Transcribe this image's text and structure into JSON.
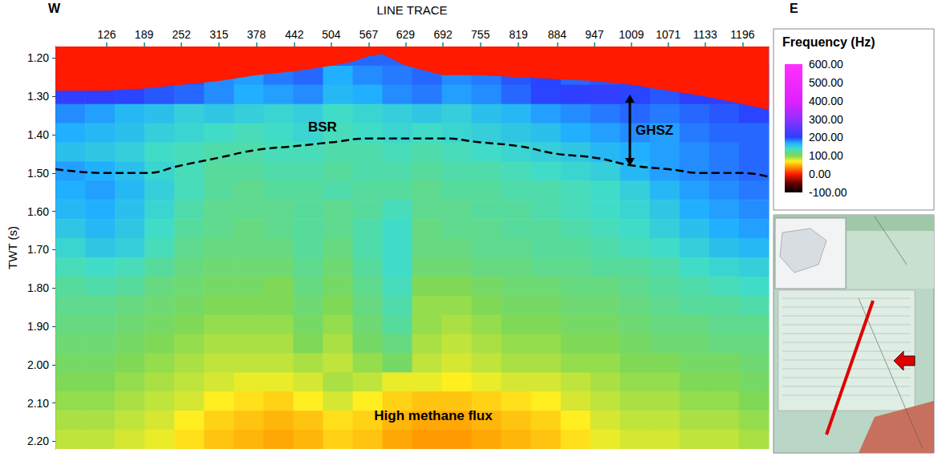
{
  "chart_data": {
    "type": "heatmap",
    "x_label": "LINE TRACE",
    "y_label": "TWT (s)",
    "direction": [
      "W",
      "E"
    ],
    "grid": false,
    "xlim": [
      40,
      1240
    ],
    "xticks": [
      126,
      189,
      252,
      315,
      378,
      442,
      504,
      567,
      629,
      692,
      755,
      819,
      884,
      947,
      1009,
      1071,
      1133,
      1196
    ],
    "ylim": [
      1.17,
      2.22
    ],
    "yticks": [
      {
        "value": 1.2,
        "label": "1.20"
      },
      {
        "value": 1.3,
        "label": "1.30"
      },
      {
        "value": 1.4,
        "label": "1.40"
      },
      {
        "value": 1.5,
        "label": "1.50"
      },
      {
        "value": 1.6,
        "label": "1.60"
      },
      {
        "value": 1.7,
        "label": "1.70"
      },
      {
        "value": 1.8,
        "label": "1.80"
      },
      {
        "value": 1.9,
        "label": "1.90"
      },
      {
        "value": 2.0,
        "label": "2.00"
      },
      {
        "value": 2.1,
        "label": "2.10"
      },
      {
        "value": 2.2,
        "label": "2.20"
      }
    ],
    "colorbar": {
      "title": "Frequency (Hz)",
      "range": [
        -100,
        600
      ],
      "ticks": [
        {
          "value": 600,
          "label": "600.00"
        },
        {
          "value": 500,
          "label": "500.00"
        },
        {
          "value": 400,
          "label": "400.00"
        },
        {
          "value": 300,
          "label": "300.00"
        },
        {
          "value": 200,
          "label": "200.00"
        },
        {
          "value": 100,
          "label": "100.00"
        },
        {
          "value": 0,
          "label": "0.00"
        },
        {
          "value": -100,
          "label": "-100.00"
        }
      ]
    },
    "water_frequency": 0,
    "seafloor": {
      "x": [
        40,
        126,
        189,
        252,
        315,
        378,
        442,
        504,
        540,
        567,
        590,
        629,
        692,
        755,
        819,
        884,
        947,
        1009,
        1071,
        1133,
        1196,
        1240
      ],
      "y": [
        1.285,
        1.285,
        1.28,
        1.27,
        1.26,
        1.245,
        1.235,
        1.22,
        1.21,
        1.195,
        1.19,
        1.22,
        1.245,
        1.245,
        1.25,
        1.255,
        1.26,
        1.27,
        1.285,
        1.3,
        1.32,
        1.335
      ]
    },
    "bsr": {
      "name": "BSR",
      "color": "#000000",
      "line_style": "dashed",
      "x": [
        40,
        126,
        189,
        252,
        315,
        378,
        442,
        504,
        567,
        629,
        692,
        755,
        819,
        884,
        947,
        1009,
        1071,
        1133,
        1196,
        1240
      ],
      "y": [
        1.49,
        1.5,
        1.5,
        1.48,
        1.46,
        1.44,
        1.43,
        1.42,
        1.41,
        1.41,
        1.41,
        1.42,
        1.43,
        1.45,
        1.46,
        1.48,
        1.49,
        1.5,
        1.5,
        1.51
      ]
    },
    "annotations": {
      "bsr": "BSR",
      "ghsz": "GHSZ",
      "flux": "High methane flux"
    },
    "cells": {
      "x_edges": [
        40,
        90,
        140,
        190,
        240,
        290,
        340,
        390,
        440,
        490,
        540,
        590,
        640,
        690,
        740,
        790,
        840,
        890,
        940,
        990,
        1040,
        1090,
        1140,
        1190,
        1240
      ],
      "y_edges": [
        1.17,
        1.22,
        1.27,
        1.32,
        1.37,
        1.42,
        1.47,
        1.52,
        1.57,
        1.62,
        1.67,
        1.72,
        1.77,
        1.82,
        1.87,
        1.92,
        1.97,
        2.02,
        2.07,
        2.12,
        2.17,
        2.22
      ],
      "values": [
        [
          190,
          190,
          190,
          190,
          190,
          190,
          190,
          190,
          190,
          190,
          190,
          190,
          190,
          190,
          190,
          190,
          190,
          190,
          190,
          190,
          190,
          190,
          190,
          190
        ],
        [
          200,
          195,
          190,
          185,
          195,
          180,
          175,
          185,
          190,
          170,
          180,
          185,
          190,
          180,
          185,
          195,
          200,
          190,
          195,
          200,
          190,
          200,
          195,
          200
        ],
        [
          210,
          205,
          200,
          195,
          190,
          180,
          170,
          175,
          180,
          165,
          170,
          180,
          185,
          175,
          180,
          190,
          200,
          205,
          210,
          200,
          195,
          205,
          210,
          200
        ],
        [
          180,
          175,
          165,
          160,
          150,
          155,
          150,
          145,
          150,
          140,
          145,
          150,
          155,
          150,
          160,
          165,
          175,
          180,
          185,
          190,
          185,
          190,
          195,
          200
        ],
        [
          170,
          165,
          160,
          150,
          145,
          140,
          135,
          140,
          145,
          135,
          140,
          145,
          140,
          145,
          150,
          155,
          160,
          170,
          175,
          180,
          175,
          185,
          190,
          190
        ],
        [
          160,
          155,
          150,
          140,
          135,
          130,
          130,
          135,
          135,
          130,
          130,
          135,
          130,
          135,
          140,
          145,
          150,
          155,
          165,
          170,
          175,
          180,
          185,
          190
        ],
        [
          175,
          170,
          160,
          145,
          135,
          125,
          125,
          130,
          130,
          125,
          130,
          130,
          125,
          130,
          130,
          135,
          140,
          145,
          150,
          165,
          175,
          180,
          185,
          190
        ],
        [
          170,
          175,
          165,
          150,
          135,
          125,
          120,
          125,
          125,
          130,
          125,
          125,
          120,
          125,
          125,
          130,
          130,
          135,
          140,
          150,
          165,
          175,
          180,
          185
        ],
        [
          165,
          170,
          160,
          145,
          130,
          120,
          120,
          120,
          125,
          120,
          125,
          135,
          120,
          120,
          125,
          125,
          130,
          135,
          140,
          145,
          155,
          170,
          175,
          180
        ],
        [
          155,
          165,
          155,
          140,
          125,
          120,
          115,
          120,
          125,
          120,
          130,
          140,
          115,
          120,
          120,
          125,
          125,
          130,
          135,
          140,
          150,
          160,
          170,
          175
        ],
        [
          145,
          155,
          150,
          135,
          120,
          115,
          115,
          115,
          125,
          115,
          130,
          140,
          115,
          115,
          120,
          120,
          125,
          125,
          130,
          135,
          140,
          150,
          160,
          165
        ],
        [
          135,
          140,
          135,
          125,
          115,
          110,
          110,
          110,
          120,
          110,
          125,
          140,
          110,
          110,
          115,
          115,
          120,
          120,
          125,
          125,
          130,
          140,
          145,
          150
        ],
        [
          125,
          130,
          125,
          115,
          110,
          105,
          105,
          100,
          115,
          105,
          120,
          135,
          100,
          100,
          105,
          110,
          110,
          115,
          115,
          120,
          125,
          130,
          135,
          140
        ],
        [
          120,
          120,
          115,
          110,
          105,
          100,
          100,
          100,
          110,
          100,
          115,
          130,
          95,
          95,
          100,
          105,
          105,
          110,
          110,
          115,
          120,
          125,
          125,
          130
        ],
        [
          115,
          115,
          110,
          105,
          100,
          95,
          95,
          95,
          105,
          95,
          110,
          125,
          95,
          90,
          95,
          100,
          100,
          105,
          105,
          110,
          115,
          115,
          120,
          120
        ],
        [
          110,
          110,
          105,
          100,
          95,
          90,
          90,
          90,
          100,
          90,
          105,
          115,
          90,
          85,
          90,
          95,
          95,
          100,
          100,
          105,
          110,
          110,
          115,
          115
        ],
        [
          105,
          105,
          100,
          95,
          90,
          85,
          85,
          85,
          90,
          85,
          95,
          105,
          85,
          80,
          85,
          90,
          90,
          95,
          95,
          100,
          100,
          105,
          105,
          110
        ],
        [
          100,
          100,
          95,
          90,
          85,
          80,
          75,
          75,
          80,
          90,
          85,
          75,
          75,
          70,
          75,
          80,
          80,
          85,
          90,
          95,
          95,
          100,
          100,
          105
        ],
        [
          95,
          95,
          90,
          85,
          80,
          70,
          65,
          60,
          70,
          80,
          70,
          60,
          55,
          55,
          60,
          65,
          70,
          80,
          85,
          90,
          90,
          95,
          95,
          100
        ],
        [
          90,
          90,
          85,
          80,
          70,
          60,
          55,
          50,
          55,
          65,
          60,
          50,
          45,
          45,
          50,
          55,
          60,
          70,
          80,
          85,
          85,
          90,
          90,
          95
        ],
        [
          85,
          85,
          80,
          75,
          65,
          55,
          50,
          45,
          50,
          60,
          55,
          45,
          40,
          40,
          45,
          50,
          55,
          65,
          75,
          80,
          80,
          85,
          85,
          90
        ]
      ]
    }
  }
}
